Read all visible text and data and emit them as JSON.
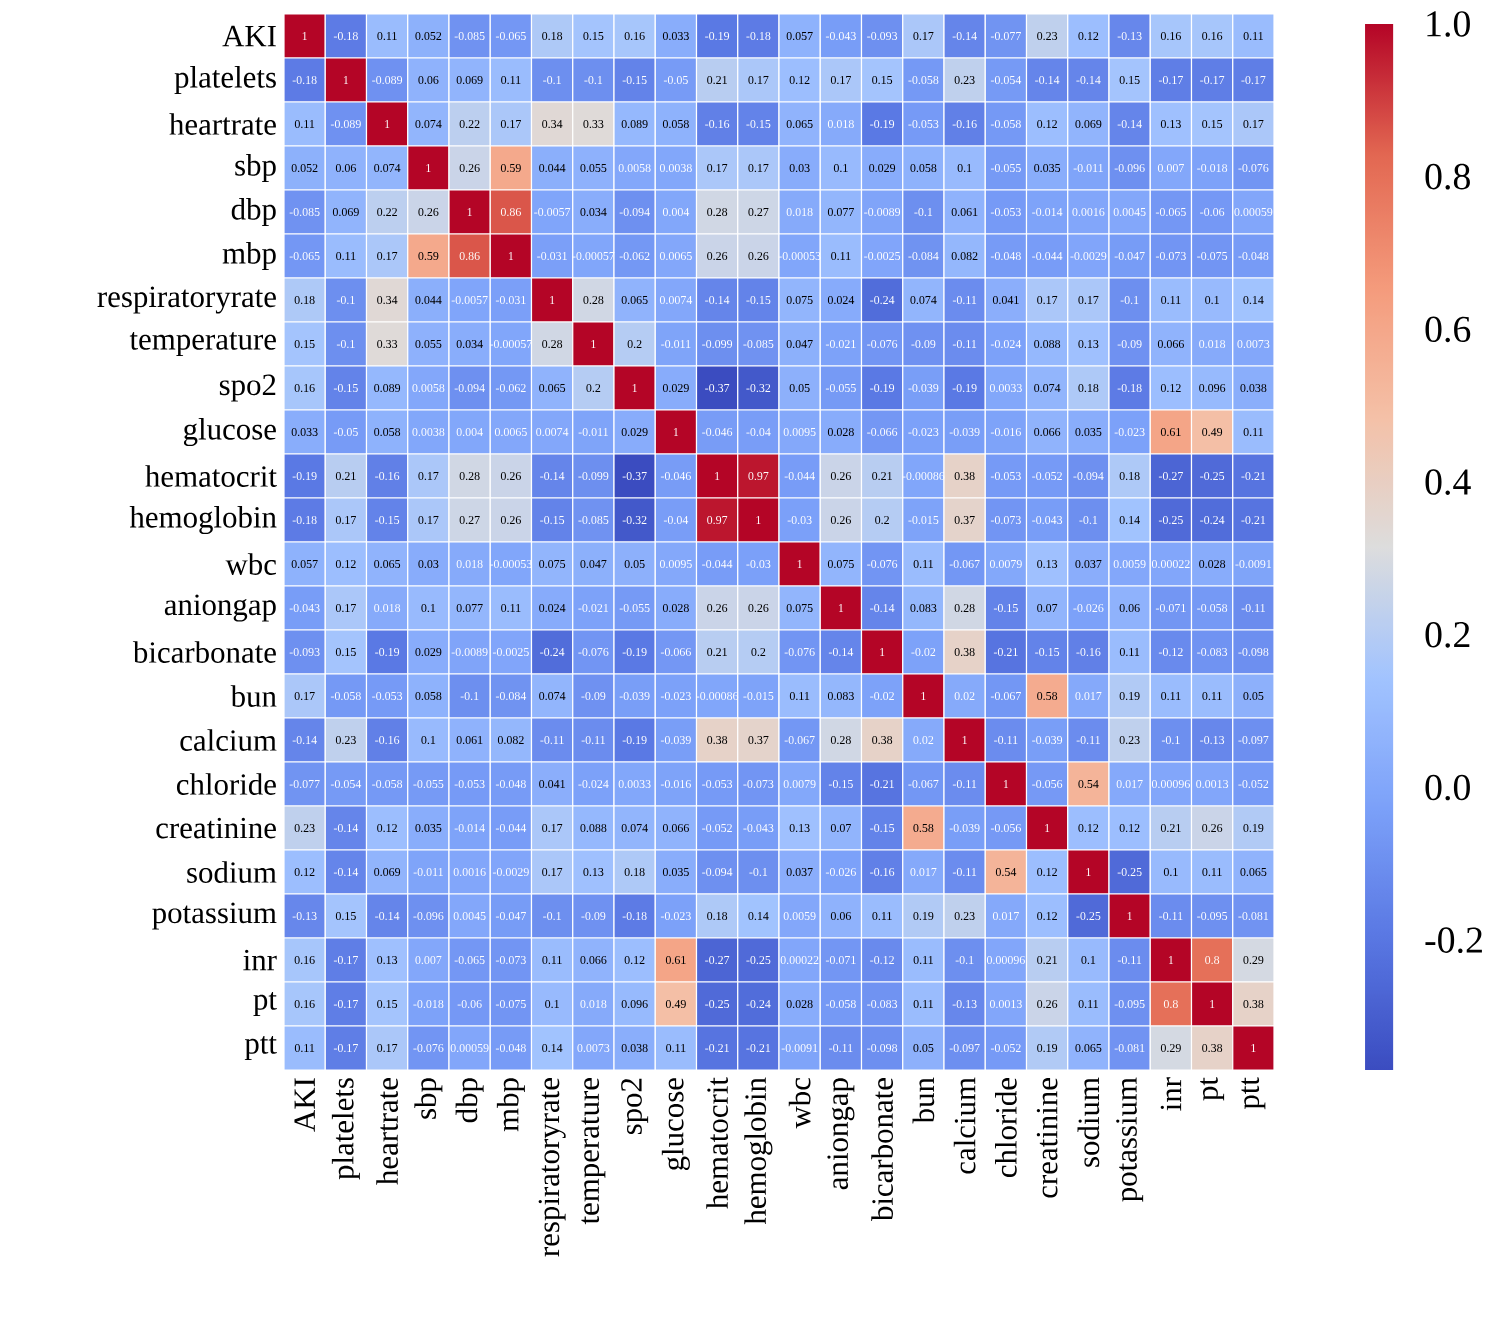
{
  "chart_data": {
    "type": "heatmap",
    "data_labels": true,
    "categories": [
      "AKI",
      "platelets",
      "heartrate",
      "sbp",
      "dbp",
      "mbp",
      "respiratoryrate",
      "temperature",
      "spo2",
      "glucose",
      "hematocrit",
      "hemoglobin",
      "wbc",
      "aniongap",
      "bicarbonate",
      "bun",
      "calcium",
      "chloride",
      "creatinine",
      "sodium",
      "potassium",
      "inr",
      "pt",
      "ptt"
    ],
    "y_categories": [
      "AKI",
      "platelets",
      "heartrate",
      "sbp",
      "dbp",
      "mbp",
      "respiratoryrate",
      "temperature",
      "spo2",
      "glucose",
      "hematocrit",
      "hemoglobin",
      "wbc",
      "aniongap",
      "bicarbonate",
      "bun",
      "calcium",
      "chloride",
      "creatinine",
      "sodium",
      "potassium",
      "inr",
      "pt",
      "ptt"
    ],
    "cells": [
      [
        1,
        -0.18,
        0.11,
        0.052,
        -0.085,
        -0.065,
        0.18,
        0.15,
        0.16,
        0.033,
        -0.19,
        -0.18,
        0.057,
        -0.043,
        -0.093,
        0.17,
        -0.14,
        -0.077,
        0.23,
        0.12,
        -0.13,
        0.16,
        0.16,
        0.11
      ],
      [
        -0.18,
        1,
        -0.089,
        0.06,
        0.069,
        0.11,
        -0.1,
        -0.1,
        -0.15,
        -0.05,
        0.21,
        0.17,
        0.12,
        0.17,
        0.15,
        -0.058,
        0.23,
        -0.054,
        -0.14,
        -0.14,
        0.15,
        -0.17,
        -0.17,
        -0.17
      ],
      [
        0.11,
        -0.089,
        1,
        0.074,
        0.22,
        0.17,
        0.34,
        0.33,
        0.089,
        0.058,
        -0.16,
        -0.15,
        0.065,
        0.018,
        -0.19,
        -0.053,
        -0.16,
        -0.058,
        0.12,
        0.069,
        -0.14,
        0.13,
        0.15,
        0.17
      ],
      [
        0.052,
        0.06,
        0.074,
        1,
        0.26,
        0.59,
        0.044,
        0.055,
        0.0058,
        0.0038,
        0.17,
        0.17,
        0.03,
        0.1,
        0.029,
        0.058,
        0.1,
        -0.055,
        0.035,
        -0.011,
        -0.096,
        0.007,
        -0.018,
        -0.076
      ],
      [
        -0.085,
        0.069,
        0.22,
        0.26,
        1,
        0.86,
        -0.0057,
        0.034,
        -0.094,
        0.004,
        0.28,
        0.27,
        0.018,
        0.077,
        -0.0089,
        -0.1,
        0.061,
        -0.053,
        -0.014,
        0.0016,
        0.0045,
        -0.065,
        -0.06,
        0.00059
      ],
      [
        -0.065,
        0.11,
        0.17,
        0.59,
        0.86,
        1,
        -0.031,
        -0.00057,
        -0.062,
        0.0065,
        0.26,
        0.26,
        -0.00053,
        0.11,
        -0.0025,
        -0.084,
        0.082,
        -0.048,
        -0.044,
        -0.0029,
        -0.047,
        -0.073,
        -0.075,
        -0.048
      ],
      [
        0.18,
        -0.1,
        0.34,
        0.044,
        -0.0057,
        -0.031,
        1,
        0.28,
        0.065,
        0.0074,
        -0.14,
        -0.15,
        0.075,
        0.024,
        -0.24,
        0.074,
        -0.11,
        0.041,
        0.17,
        0.17,
        -0.1,
        0.11,
        0.1,
        0.14
      ],
      [
        0.15,
        -0.1,
        0.33,
        0.055,
        0.034,
        -0.00057,
        0.28,
        1,
        0.2,
        -0.011,
        -0.099,
        -0.085,
        0.047,
        -0.021,
        -0.076,
        -0.09,
        -0.11,
        -0.024,
        0.088,
        0.13,
        -0.09,
        0.066,
        0.018,
        0.0073
      ],
      [
        0.16,
        -0.15,
        0.089,
        0.0058,
        -0.094,
        -0.062,
        0.065,
        0.2,
        1,
        0.029,
        -0.37,
        -0.32,
        0.05,
        -0.055,
        -0.19,
        -0.039,
        -0.19,
        0.0033,
        0.074,
        0.18,
        -0.18,
        0.12,
        0.096,
        0.038
      ],
      [
        0.033,
        -0.05,
        0.058,
        0.0038,
        0.004,
        0.0065,
        0.0074,
        -0.011,
        0.029,
        1,
        -0.046,
        -0.04,
        0.0095,
        0.028,
        -0.066,
        -0.023,
        -0.039,
        -0.016,
        0.066,
        0.035,
        -0.023,
        0.61,
        0.49,
        0.11
      ],
      [
        -0.19,
        0.21,
        -0.16,
        0.17,
        0.28,
        0.26,
        -0.14,
        -0.099,
        -0.37,
        -0.046,
        1,
        0.97,
        -0.044,
        0.26,
        0.21,
        -0.00086,
        0.38,
        -0.053,
        -0.052,
        -0.094,
        0.18,
        -0.27,
        -0.25,
        -0.21
      ],
      [
        -0.18,
        0.17,
        -0.15,
        0.17,
        0.27,
        0.26,
        -0.15,
        -0.085,
        -0.32,
        -0.04,
        0.97,
        1,
        -0.03,
        0.26,
        0.2,
        -0.015,
        0.37,
        -0.073,
        -0.043,
        -0.1,
        0.14,
        -0.25,
        -0.24,
        -0.21
      ],
      [
        0.057,
        0.12,
        0.065,
        0.03,
        0.018,
        -0.00053,
        0.075,
        0.047,
        0.05,
        0.0095,
        -0.044,
        -0.03,
        1,
        0.075,
        -0.076,
        0.11,
        -0.067,
        0.0079,
        0.13,
        0.037,
        0.0059,
        0.00022,
        0.028,
        -0.0091
      ],
      [
        -0.043,
        0.17,
        0.018,
        0.1,
        0.077,
        0.11,
        0.024,
        -0.021,
        -0.055,
        0.028,
        0.26,
        0.26,
        0.075,
        1,
        -0.14,
        0.083,
        0.28,
        -0.15,
        0.07,
        -0.026,
        0.06,
        -0.071,
        -0.058,
        -0.11
      ],
      [
        -0.093,
        0.15,
        -0.19,
        0.029,
        -0.0089,
        -0.0025,
        -0.24,
        -0.076,
        -0.19,
        -0.066,
        0.21,
        0.2,
        -0.076,
        -0.14,
        1,
        -0.02,
        0.38,
        -0.21,
        -0.15,
        -0.16,
        0.11,
        -0.12,
        -0.083,
        -0.098
      ],
      [
        0.17,
        -0.058,
        -0.053,
        0.058,
        -0.1,
        -0.084,
        0.074,
        -0.09,
        -0.039,
        -0.023,
        -0.00086,
        -0.015,
        0.11,
        0.083,
        -0.02,
        1,
        0.02,
        -0.067,
        0.58,
        0.017,
        0.19,
        0.11,
        0.11,
        0.05
      ],
      [
        -0.14,
        0.23,
        -0.16,
        0.1,
        0.061,
        0.082,
        -0.11,
        -0.11,
        -0.19,
        -0.039,
        0.38,
        0.37,
        -0.067,
        0.28,
        0.38,
        0.02,
        1,
        -0.11,
        -0.039,
        -0.11,
        0.23,
        -0.1,
        -0.13,
        -0.097
      ],
      [
        -0.077,
        -0.054,
        -0.058,
        -0.055,
        -0.053,
        -0.048,
        0.041,
        -0.024,
        0.0033,
        -0.016,
        -0.053,
        -0.073,
        0.0079,
        -0.15,
        -0.21,
        -0.067,
        -0.11,
        1,
        -0.056,
        0.54,
        0.017,
        0.00096,
        0.0013,
        -0.052
      ],
      [
        0.23,
        -0.14,
        0.12,
        0.035,
        -0.014,
        -0.044,
        0.17,
        0.088,
        0.074,
        0.066,
        -0.052,
        -0.043,
        0.13,
        0.07,
        -0.15,
        0.58,
        -0.039,
        -0.056,
        1,
        0.12,
        0.12,
        0.21,
        0.26,
        0.19
      ],
      [
        0.12,
        -0.14,
        0.069,
        -0.011,
        0.0016,
        -0.0029,
        0.17,
        0.13,
        0.18,
        0.035,
        -0.094,
        -0.1,
        0.037,
        -0.026,
        -0.16,
        0.017,
        -0.11,
        0.54,
        0.12,
        1,
        -0.25,
        0.1,
        0.11,
        0.065
      ],
      [
        -0.13,
        0.15,
        -0.14,
        -0.096,
        0.0045,
        -0.047,
        -0.1,
        -0.09,
        -0.18,
        -0.023,
        0.18,
        0.14,
        0.0059,
        0.06,
        0.11,
        0.19,
        0.23,
        0.017,
        0.12,
        -0.25,
        1,
        -0.11,
        -0.095,
        -0.081
      ],
      [
        0.16,
        -0.17,
        0.13,
        0.007,
        -0.065,
        -0.073,
        0.11,
        0.066,
        0.12,
        0.61,
        -0.27,
        -0.25,
        0.00022,
        -0.071,
        -0.12,
        0.11,
        -0.1,
        0.00096,
        0.21,
        0.1,
        -0.11,
        1,
        0.8,
        0.29
      ],
      [
        0.16,
        -0.17,
        0.15,
        -0.018,
        -0.06,
        -0.075,
        0.1,
        0.018,
        0.096,
        0.49,
        -0.25,
        -0.24,
        0.028,
        -0.058,
        -0.083,
        0.11,
        -0.13,
        0.0013,
        0.26,
        0.11,
        -0.095,
        0.8,
        1,
        0.38
      ],
      [
        0.11,
        -0.17,
        0.17,
        -0.076,
        0.00059,
        -0.048,
        0.14,
        0.0073,
        0.038,
        0.11,
        -0.21,
        -0.21,
        -0.0091,
        -0.11,
        -0.098,
        0.05,
        -0.097,
        -0.052,
        0.19,
        0.065,
        -0.081,
        0.29,
        0.38,
        1
      ]
    ],
    "clim": [
      -0.37,
      1
    ],
    "cticks": [
      {
        "value": -0.2,
        "label": "-0.2"
      },
      {
        "value": 0,
        "label": "0.0"
      },
      {
        "value": 0.2,
        "label": "0.2"
      },
      {
        "value": 0.4,
        "label": "0.4"
      },
      {
        "value": 0.6,
        "label": "0.6"
      },
      {
        "value": 0.8,
        "label": "0.8"
      },
      {
        "value": 1,
        "label": "1.0"
      }
    ]
  }
}
